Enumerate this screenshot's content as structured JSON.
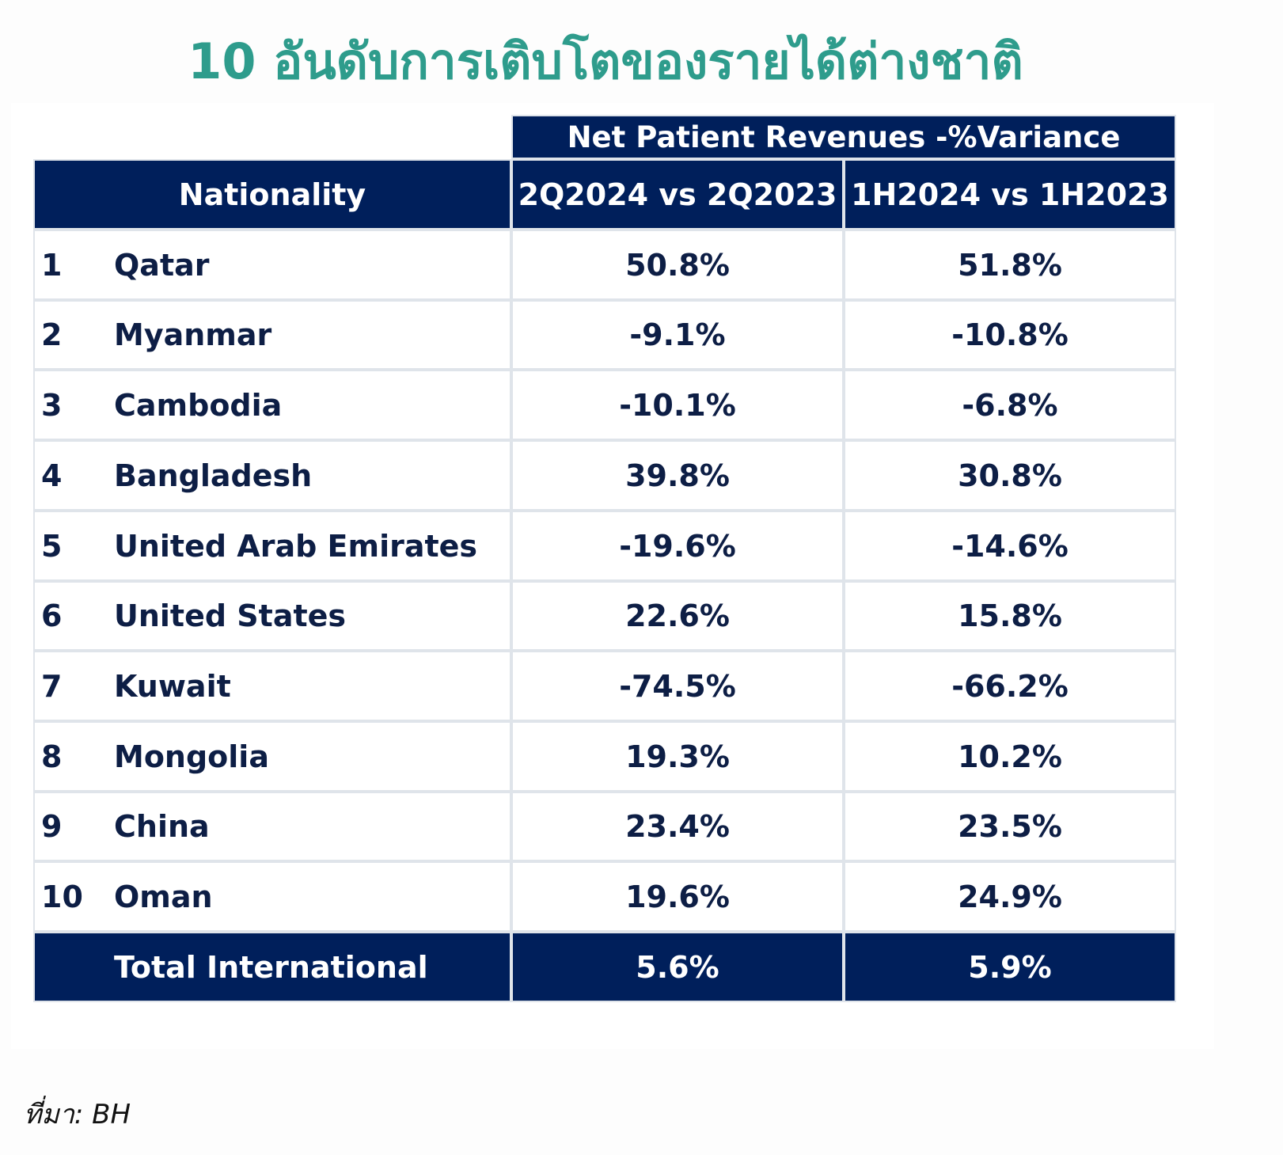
{
  "title": "10 อันดับการเติบโตของรายได้ต่างชาติ",
  "table": {
    "group_header": "Net Patient Revenues -%Variance",
    "columns": [
      "Nationality",
      "2Q2024 vs 2Q2023",
      "1H2024 vs 1H2023"
    ],
    "rows": [
      {
        "rank": "1",
        "country": "Qatar",
        "q": "50.8%",
        "h": "51.8%"
      },
      {
        "rank": "2",
        "country": "Myanmar",
        "q": "-9.1%",
        "h": "-10.8%"
      },
      {
        "rank": "3",
        "country": "Cambodia",
        "q": "-10.1%",
        "h": "-6.8%"
      },
      {
        "rank": "4",
        "country": "Bangladesh",
        "q": "39.8%",
        "h": "30.8%"
      },
      {
        "rank": "5",
        "country": "United Arab Emirates",
        "q": "-19.6%",
        "h": "-14.6%"
      },
      {
        "rank": "6",
        "country": "United States",
        "q": "22.6%",
        "h": "15.8%"
      },
      {
        "rank": "7",
        "country": "Kuwait",
        "q": "-74.5%",
        "h": "-66.2%"
      },
      {
        "rank": "8",
        "country": "Mongolia",
        "q": "19.3%",
        "h": "10.2%"
      },
      {
        "rank": "9",
        "country": "China",
        "q": "23.4%",
        "h": "23.5%"
      },
      {
        "rank": "10",
        "country": "Oman",
        "q": "19.6%",
        "h": "24.9%"
      }
    ],
    "total": {
      "label": "Total International",
      "q": "5.6%",
      "h": "5.9%"
    }
  },
  "source": "ที่มา: BH",
  "colors": {
    "title": "#2e9c8c",
    "header_bg": "#001f5b",
    "header_text": "#ffffff",
    "body_text": "#0d1e45",
    "grid_line": "#dfe4ea"
  }
}
